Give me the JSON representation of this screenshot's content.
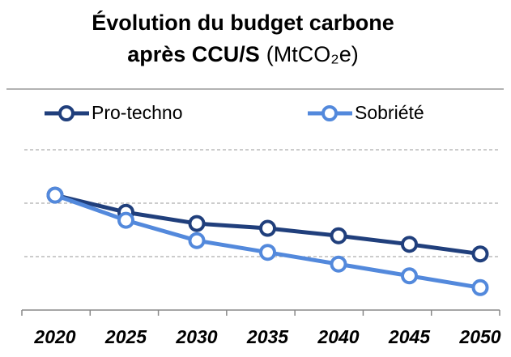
{
  "chart_data": {
    "type": "line",
    "title": "Évolution du budget carbone",
    "subtitle": "après CCU/S",
    "unit": "(MtCO₂e)",
    "categories": [
      "2020",
      "2025",
      "2030",
      "2035",
      "2040",
      "2045",
      "2050"
    ],
    "series": [
      {
        "name": "Pro-techno",
        "color": "#203f7c",
        "values": [
          215,
          183,
          162,
          153,
          139,
          123,
          105
        ]
      },
      {
        "name": "Sobriété",
        "color": "#5389dc",
        "values": [
          215,
          168,
          130,
          108,
          86,
          64,
          42
        ]
      }
    ],
    "ylim": [
      0,
      300
    ],
    "yticks": [
      0,
      100,
      200,
      300
    ],
    "grid": true,
    "legend": "top"
  }
}
